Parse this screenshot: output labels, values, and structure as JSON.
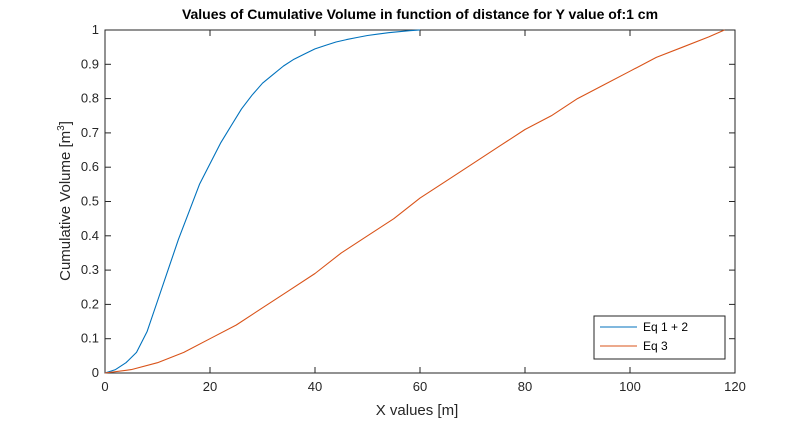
{
  "chart_data": {
    "type": "line",
    "title": "Values of Cumulative Volume in function of distance for Y value of:1 cm",
    "xlabel": "X values [m]",
    "ylabel_main": "Cumulative Volume [m",
    "ylabel_sup": "3",
    "ylabel_close": "]",
    "xlim": [
      0,
      120
    ],
    "ylim": [
      0,
      1
    ],
    "xticks": [
      "0",
      "20",
      "40",
      "60",
      "80",
      "100",
      "120"
    ],
    "yticks": [
      "0",
      "0.1",
      "0.2",
      "0.3",
      "0.4",
      "0.5",
      "0.6",
      "0.7",
      "0.8",
      "0.9",
      "1"
    ],
    "legend_position": "bottom-right",
    "grid": false,
    "series": [
      {
        "name": "Eq 1 + 2",
        "color": "#0072BD",
        "x": [
          0,
          2,
          4,
          6,
          8,
          10,
          12,
          14,
          16,
          18,
          20,
          22,
          24,
          26,
          28,
          30,
          32,
          34,
          36,
          38,
          40,
          42,
          44,
          46,
          48,
          50,
          52,
          54,
          56,
          58,
          60
        ],
        "y": [
          0,
          0.01,
          0.03,
          0.06,
          0.12,
          0.21,
          0.3,
          0.39,
          0.47,
          0.55,
          0.61,
          0.67,
          0.72,
          0.77,
          0.81,
          0.845,
          0.87,
          0.895,
          0.915,
          0.93,
          0.945,
          0.955,
          0.965,
          0.972,
          0.978,
          0.984,
          0.988,
          0.992,
          0.995,
          0.998,
          1.0
        ]
      },
      {
        "name": "Eq 3",
        "color": "#D95319",
        "x": [
          0,
          5,
          10,
          15,
          20,
          25,
          30,
          35,
          40,
          45,
          50,
          55,
          60,
          65,
          70,
          75,
          80,
          85,
          90,
          95,
          100,
          105,
          110,
          115,
          118
        ],
        "y": [
          0,
          0.01,
          0.03,
          0.06,
          0.1,
          0.14,
          0.19,
          0.24,
          0.29,
          0.35,
          0.4,
          0.45,
          0.51,
          0.56,
          0.61,
          0.66,
          0.71,
          0.75,
          0.8,
          0.84,
          0.88,
          0.92,
          0.95,
          0.98,
          1.0
        ]
      }
    ]
  }
}
